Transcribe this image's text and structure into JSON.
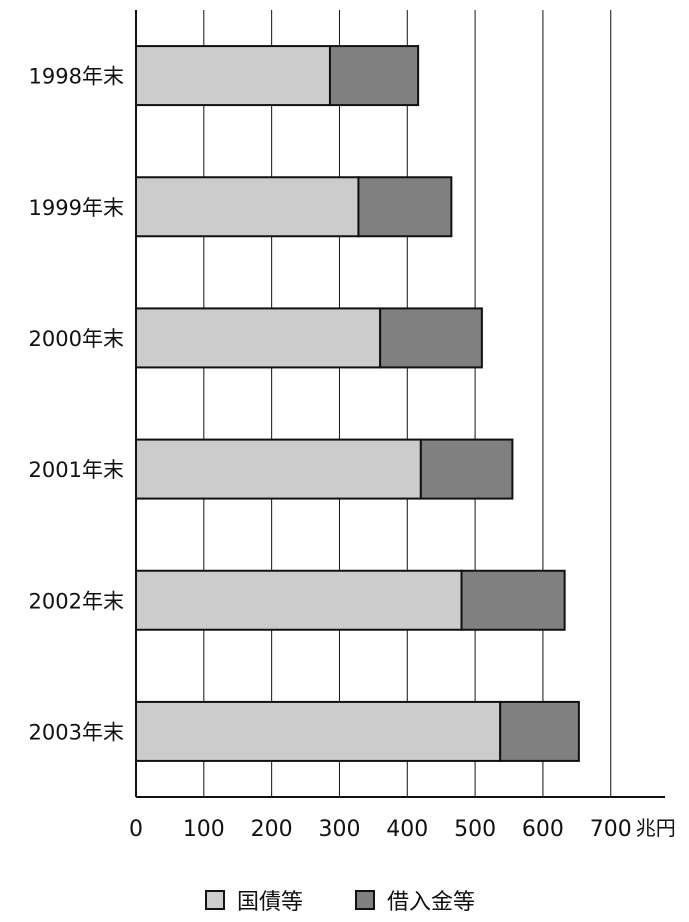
{
  "chart_data": {
    "type": "bar",
    "orientation": "horizontal",
    "stacked": true,
    "categories": [
      "1998年末",
      "1999年末",
      "2000年末",
      "2001年末",
      "2002年末",
      "2003年末"
    ],
    "series": [
      {
        "name": "国債等",
        "values": [
          286,
          328,
          360,
          420,
          480,
          537
        ],
        "color": "#cccccc"
      },
      {
        "name": "借入金等",
        "values": [
          130,
          137,
          150,
          135,
          152,
          116
        ],
        "color": "#808080"
      }
    ],
    "x_ticks": [
      "0",
      "100",
      "200",
      "300",
      "400",
      "500",
      "600",
      "700"
    ],
    "x_unit": "兆円",
    "xlim": [
      0,
      780
    ],
    "grid": true,
    "legend_position": "bottom",
    "title": "",
    "xlabel": "",
    "ylabel": ""
  }
}
